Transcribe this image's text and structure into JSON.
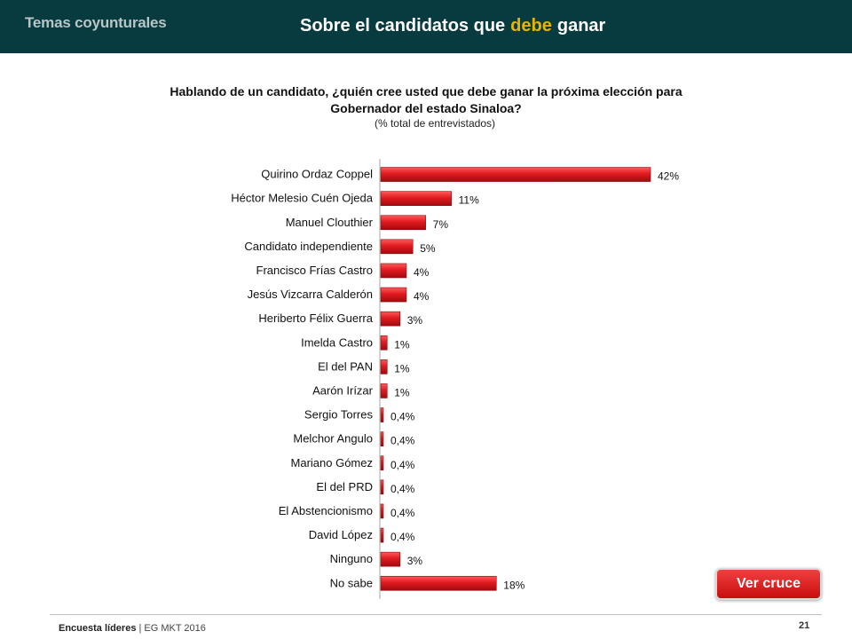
{
  "header": {
    "section": "Temas coyunturales",
    "title_pre": "Sobre el candidatos que",
    "title_highlight": "debe",
    "title_post": "ganar"
  },
  "question": {
    "text": "Hablando de un candidato, ¿quién cree usted que debe ganar la próxima elección para Gobernador del estado Sinaloa?",
    "subtitle": "(% total de entrevistados)"
  },
  "button": {
    "label": "Ver cruce"
  },
  "footer": {
    "source_bold": "Encuesta líderes",
    "source_rest": " | EG MKT 2016",
    "page": "21"
  },
  "colors": {
    "header_bg": "#073b3f",
    "highlight": "#e8b400",
    "bar": "#d0141a"
  },
  "chart_data": {
    "type": "bar",
    "orientation": "horizontal",
    "categories": [
      "Quirino Ordaz Coppel",
      "Héctor Melesio Cuén Ojeda",
      "Manuel Clouthier",
      "Candidato independiente",
      "Francisco Frías Castro",
      "Jesús Vizcarra Calderón",
      "Heriberto Félix Guerra",
      "Imelda Castro",
      "El del PAN",
      "Aarón Irízar",
      "Sergio Torres",
      "Melchor Angulo",
      "Mariano Gómez",
      "El del PRD",
      "El Abstencionismo",
      "David López",
      "Ninguno",
      "No sabe"
    ],
    "values": [
      42,
      11,
      7,
      5,
      4,
      4,
      3,
      1,
      1,
      1,
      0.4,
      0.4,
      0.4,
      0.4,
      0.4,
      0.4,
      3,
      18
    ],
    "data_labels": [
      "42%",
      "11%",
      "7%",
      "5%",
      "4%",
      "4%",
      "3%",
      "1%",
      "1%",
      "1%",
      "0,4%",
      "0,4%",
      "0,4%",
      "0,4%",
      "0,4%",
      "0,4%",
      "3%",
      "18%"
    ],
    "xlim": [
      0,
      42
    ],
    "grid": false,
    "legend": "none"
  }
}
